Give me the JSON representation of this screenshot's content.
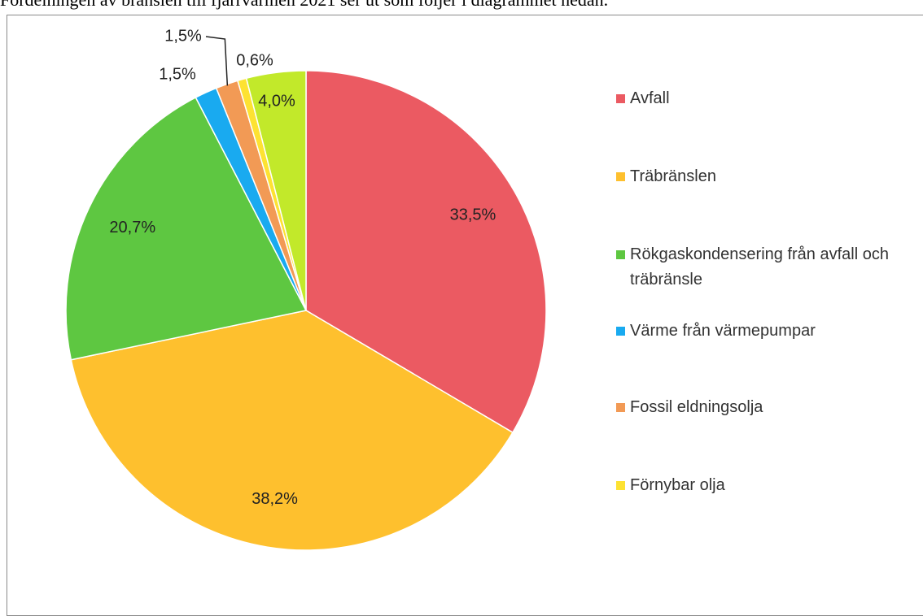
{
  "chart_data": {
    "type": "pie",
    "title": "Fördelningen av bränslen till fjärrvärmen 2021 ser ut som följer i diagrammet nedan.",
    "categories": [
      "Avfall",
      "Träbränslen",
      "Rökgaskondensering från avfall och träbränsle",
      "Värme från värmepumpar",
      "Fossil eldningsolja",
      "Förnybar olja",
      null
    ],
    "values": [
      33.5,
      38.2,
      20.7,
      1.5,
      1.5,
      0.6,
      4.0
    ],
    "value_labels": [
      "33,5%",
      "38,2%",
      "20,7%",
      "1,5%",
      "1,5%",
      "0,6%",
      "4,0%"
    ],
    "colors": [
      "#eb5a62",
      "#fec02e",
      "#5ec741",
      "#19aaf0",
      "#f29a55",
      "#fde232",
      "#c2e92a"
    ],
    "legend": "right"
  }
}
